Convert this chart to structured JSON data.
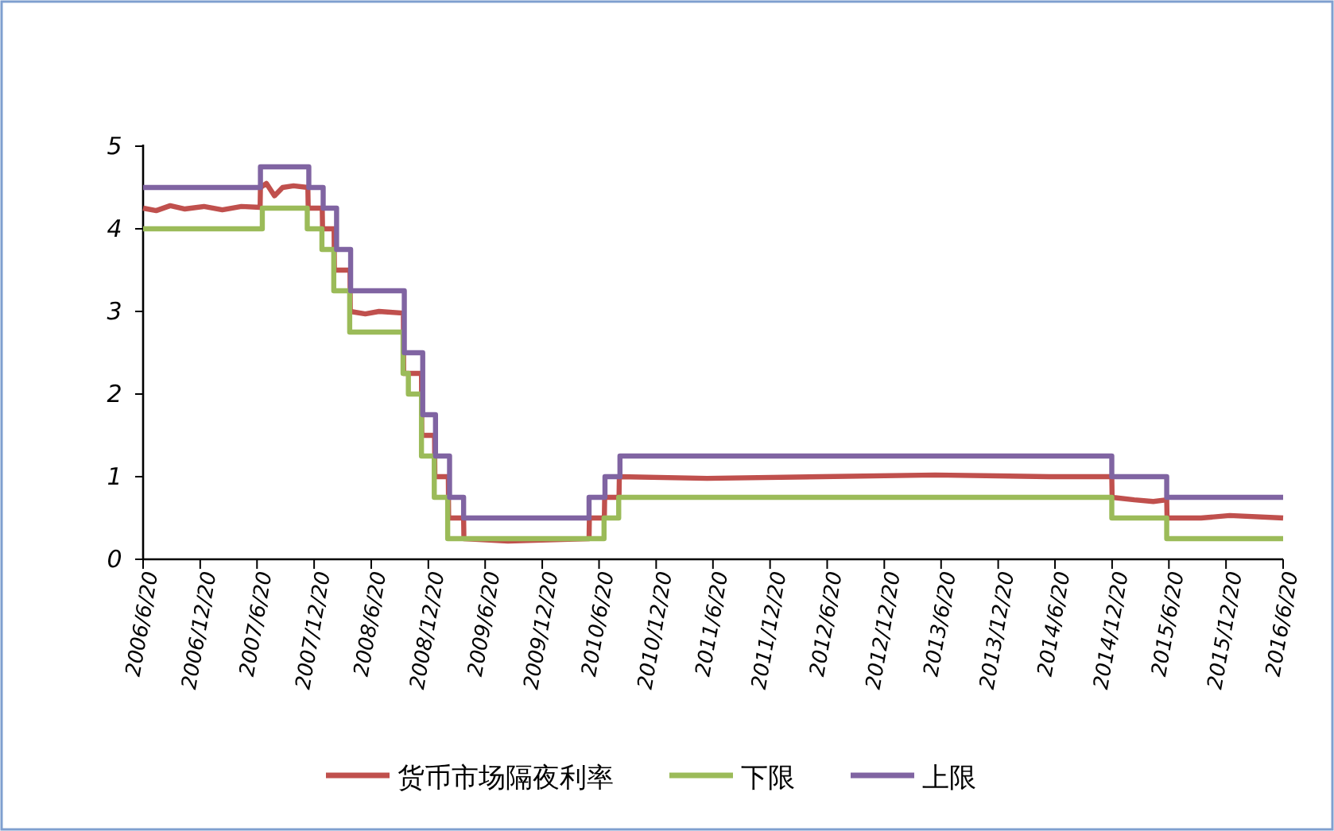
{
  "chart_data": {
    "type": "line",
    "xlim": [
      "2006-06-20",
      "2016-06-20"
    ],
    "xticks": [
      {
        "value": "2006-06-20",
        "label": "2006/6/20"
      },
      {
        "value": "2006-12-20",
        "label": "2006/12/20"
      },
      {
        "value": "2007-06-20",
        "label": "2007/6/20"
      },
      {
        "value": "2007-12-20",
        "label": "2007/12/20"
      },
      {
        "value": "2008-06-20",
        "label": "2008/6/20"
      },
      {
        "value": "2008-12-20",
        "label": "2008/12/20"
      },
      {
        "value": "2009-06-20",
        "label": "2009/6/20"
      },
      {
        "value": "2009-12-20",
        "label": "2009/12/20"
      },
      {
        "value": "2010-06-20",
        "label": "2010/6/20"
      },
      {
        "value": "2010-12-20",
        "label": "2010/12/20"
      },
      {
        "value": "2011-06-20",
        "label": "2011/6/20"
      },
      {
        "value": "2011-12-20",
        "label": "2011/12/20"
      },
      {
        "value": "2012-06-20",
        "label": "2012/6/20"
      },
      {
        "value": "2012-12-20",
        "label": "2012/12/20"
      },
      {
        "value": "2013-06-20",
        "label": "2013/6/20"
      },
      {
        "value": "2013-12-20",
        "label": "2013/12/20"
      },
      {
        "value": "2014-06-20",
        "label": "2014/6/20"
      },
      {
        "value": "2014-12-20",
        "label": "2014/12/20"
      },
      {
        "value": "2015-06-20",
        "label": "2015/6/20"
      },
      {
        "value": "2015-12-20",
        "label": "2015/12/20"
      },
      {
        "value": "2016-06-20",
        "label": "2016/6/20"
      }
    ],
    "ylim": [
      0,
      5
    ],
    "yticks": [
      0,
      1,
      2,
      3,
      4,
      5
    ],
    "grid": false,
    "legend": "bottom",
    "line_style": "solid",
    "series": [
      {
        "name": "货币市场隔夜利率",
        "color": "#c0504d",
        "x": [
          "2006-06-20",
          "2006-08-01",
          "2006-09-15",
          "2006-11-01",
          "2007-01-01",
          "2007-03-01",
          "2007-05-01",
          "2007-06-30",
          "2007-07-01",
          "2007-07-20",
          "2007-08-15",
          "2007-09-10",
          "2007-10-15",
          "2007-11-30",
          "2007-12-01",
          "2008-01-15",
          "2008-01-16",
          "2008-02-22",
          "2008-02-23",
          "2008-04-13",
          "2008-04-14",
          "2008-06-01",
          "2008-07-15",
          "2008-10-01",
          "2008-10-02",
          "2008-11-28",
          "2008-11-29",
          "2009-01-09",
          "2009-01-10",
          "2009-02-22",
          "2009-02-23",
          "2009-04-12",
          "2009-04-13",
          "2009-09-01",
          "2010-05-19",
          "2010-05-20",
          "2010-07-07",
          "2010-07-08",
          "2010-08-23",
          "2010-08-24",
          "2011-06-01",
          "2012-06-01",
          "2013-06-01",
          "2014-06-01",
          "2014-12-19",
          "2014-12-20",
          "2015-03-01",
          "2015-05-01",
          "2015-06-13",
          "2015-06-14",
          "2015-10-01",
          "2016-01-01",
          "2016-06-20"
        ],
        "values": [
          4.25,
          4.22,
          4.28,
          4.24,
          4.27,
          4.23,
          4.27,
          4.26,
          4.5,
          4.55,
          4.4,
          4.5,
          4.52,
          4.5,
          4.25,
          4.25,
          4.0,
          4.0,
          3.5,
          3.5,
          3.0,
          2.97,
          3.0,
          2.98,
          2.25,
          2.25,
          1.5,
          1.5,
          1.0,
          1.0,
          0.5,
          0.5,
          0.25,
          0.22,
          0.25,
          0.5,
          0.5,
          0.75,
          0.75,
          1.0,
          0.98,
          1.0,
          1.02,
          1.0,
          1.0,
          0.75,
          0.72,
          0.7,
          0.72,
          0.5,
          0.5,
          0.53,
          0.5
        ]
      },
      {
        "name": "下限",
        "color": "#9bbb59",
        "type": "step",
        "x": [
          "2006-06-20",
          "2007-07-07",
          "2007-11-28",
          "2008-01-14",
          "2008-02-21",
          "2008-04-12",
          "2008-09-30",
          "2008-10-17",
          "2008-11-28",
          "2009-01-08",
          "2009-02-20",
          "2010-07-06",
          "2010-08-22",
          "2014-12-19",
          "2015-06-13",
          "2016-06-20"
        ],
        "values": [
          4.0,
          4.25,
          4.0,
          3.75,
          3.25,
          2.75,
          2.25,
          2.0,
          1.25,
          0.75,
          0.25,
          0.5,
          0.75,
          0.5,
          0.25,
          0.25
        ]
      },
      {
        "name": "上限",
        "color": "#8064a2",
        "type": "step",
        "x": [
          "2006-06-20",
          "2007-07-01",
          "2007-12-03",
          "2008-01-18",
          "2008-03-01",
          "2008-04-15",
          "2008-10-04",
          "2008-12-02",
          "2009-01-12",
          "2009-02-26",
          "2009-04-12",
          "2010-05-19",
          "2010-07-09",
          "2010-08-26",
          "2014-12-19",
          "2015-06-13",
          "2016-06-20"
        ],
        "values": [
          4.5,
          4.75,
          4.5,
          4.25,
          3.75,
          3.25,
          2.5,
          1.75,
          1.25,
          0.75,
          0.5,
          0.75,
          1.0,
          1.25,
          1.0,
          0.75,
          0.75
        ]
      }
    ]
  }
}
